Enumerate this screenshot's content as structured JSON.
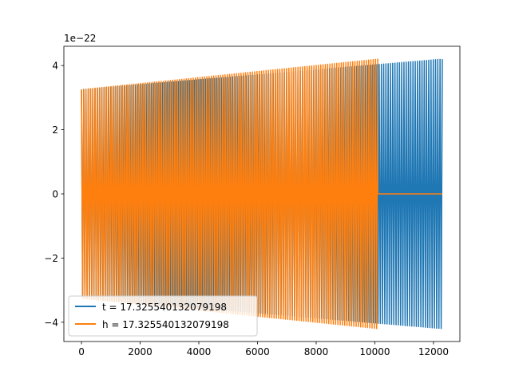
{
  "chart_data": {
    "type": "line",
    "title": "",
    "xlabel": "",
    "ylabel": "",
    "y_offset_label": "1e−22",
    "xlim": [
      -600,
      12900
    ],
    "ylim": [
      -4.6,
      4.6
    ],
    "xticks": [
      0,
      2000,
      4000,
      6000,
      8000,
      10000,
      12000
    ],
    "xtick_labels": [
      "0",
      "2000",
      "4000",
      "6000",
      "8000",
      "10000",
      "12000"
    ],
    "yticks": [
      -4,
      -2,
      0,
      2,
      4
    ],
    "ytick_labels": [
      "−4",
      "−2",
      "0",
      "2",
      "4"
    ],
    "grid": false,
    "legend_position": "lower-left",
    "series": [
      {
        "name": "t = 17.325540132079198",
        "color": "#1f77b4",
        "x_range": [
          0,
          12300
        ],
        "amplitude_start": 3.25,
        "amplitude_end": 4.2,
        "cycles": 160,
        "note_visible": "oscillation with growing envelope, extends to about 12300"
      },
      {
        "name": "h = 17.325540132079198",
        "color": "#ff7f0e",
        "x_range": [
          0,
          10100
        ],
        "amplitude_start": 3.25,
        "amplitude_end": 4.2,
        "cycles": 130,
        "flat_after": 10100,
        "flat_end": 12300,
        "flat_value": 0
      }
    ]
  }
}
